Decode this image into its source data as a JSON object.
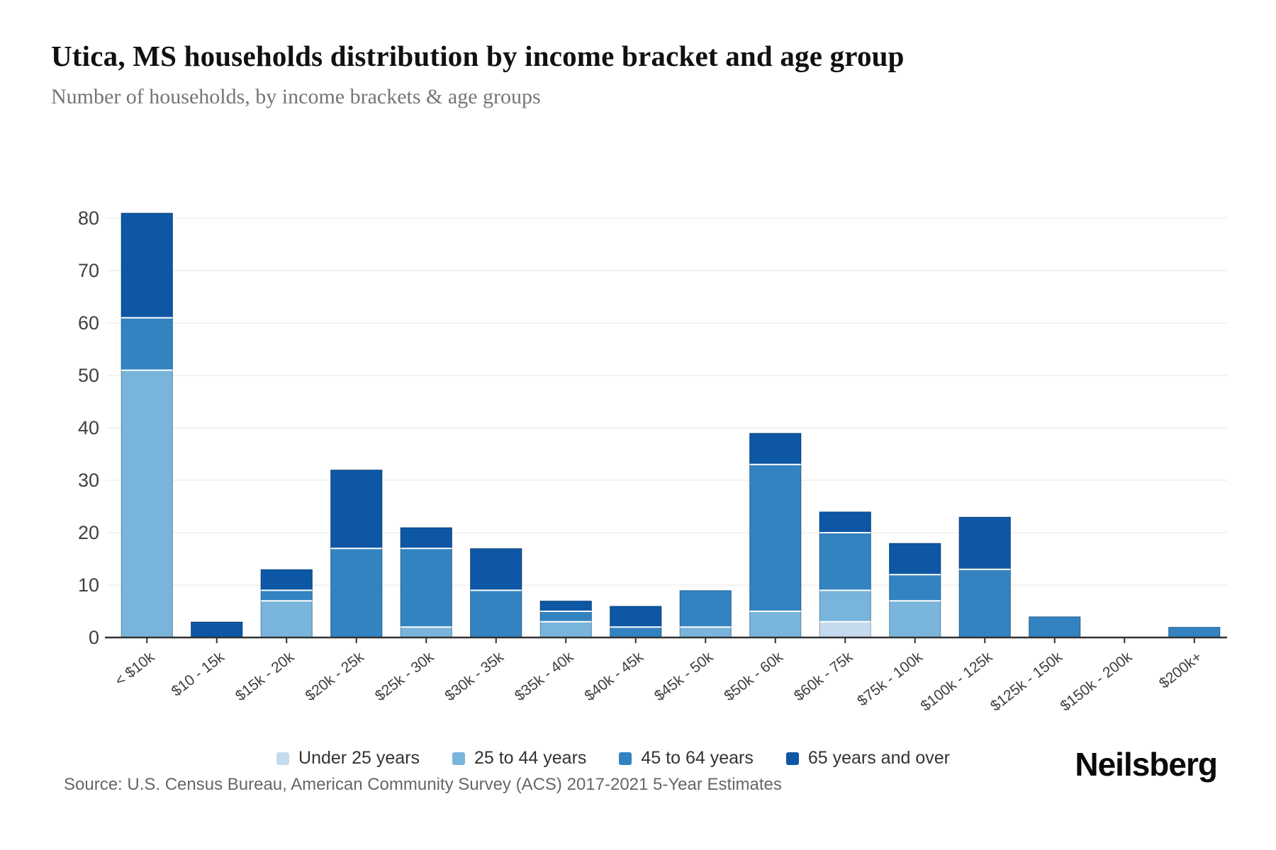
{
  "header": {
    "title": "Utica, MS households distribution by income bracket and age group",
    "subtitle": "Number of households, by income brackets & age groups"
  },
  "chart_data": {
    "type": "bar",
    "stacked": true,
    "title": "Utica, MS households distribution by income bracket and age group",
    "xlabel": "",
    "ylabel": "",
    "ylim": [
      0,
      80
    ],
    "ytick_step": 10,
    "grid": "horizontal",
    "legend_position": "bottom",
    "categories": [
      "< $10k",
      "$10 - 15k",
      "$15k - 20k",
      "$20k - 25k",
      "$25k - 30k",
      "$30k - 35k",
      "$35k - 40k",
      "$40k - 45k",
      "$45k - 50k",
      "$50k - 60k",
      "$60k - 75k",
      "$75k - 100k",
      "$100k - 125k",
      "$125k - 150k",
      "$150k - 200k",
      "$200k+"
    ],
    "series": [
      {
        "name": "Under 25 years",
        "color": "#c5dbed",
        "values": [
          0,
          0,
          0,
          0,
          0,
          0,
          0,
          0,
          0,
          0,
          3,
          0,
          0,
          0,
          0,
          0
        ]
      },
      {
        "name": "25 to 44 years",
        "color": "#79b4db",
        "values": [
          51,
          0,
          7,
          0,
          2,
          0,
          3,
          0,
          2,
          5,
          6,
          7,
          0,
          0,
          0,
          0
        ]
      },
      {
        "name": "45 to 64 years",
        "color": "#3383c1",
        "values": [
          10,
          0,
          2,
          17,
          15,
          9,
          2,
          2,
          7,
          28,
          11,
          5,
          13,
          4,
          0,
          2
        ]
      },
      {
        "name": "65 years and over",
        "color": "#0d57a5",
        "values": [
          20,
          3,
          4,
          15,
          4,
          8,
          2,
          4,
          0,
          6,
          4,
          6,
          10,
          0,
          0,
          0
        ]
      }
    ],
    "totals": [
      81,
      3,
      13,
      32,
      21,
      17,
      7,
      6,
      9,
      39,
      24,
      18,
      23,
      4,
      0,
      2
    ]
  },
  "footer": {
    "source": "Source: U.S. Census Bureau, American Community Survey (ACS) 2017-2021 5-Year Estimates",
    "logo": "Neilsberg"
  },
  "style": {
    "axis_color": "#333333",
    "grid_color": "#efefef",
    "ytick_color": "#404040",
    "xtick_color": "#3d3d3d",
    "bar_outline": "rgba(0,0,0,0.25)"
  }
}
